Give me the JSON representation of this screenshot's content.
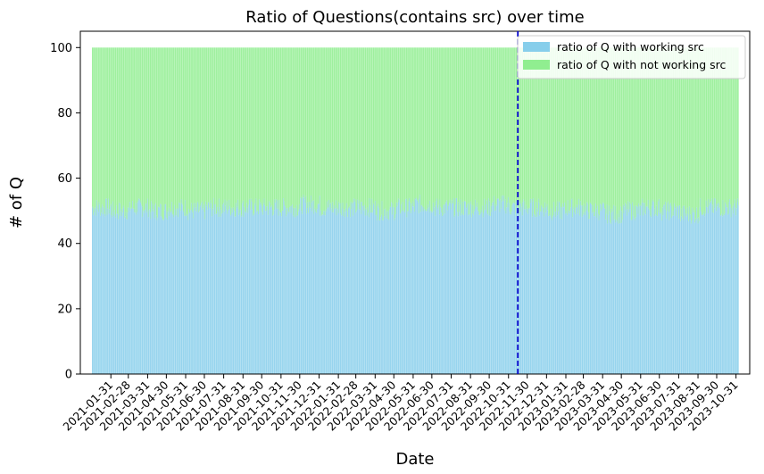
{
  "chart_data": {
    "type": "bar",
    "stacked": true,
    "title": "Ratio of Questions(contains src) over time",
    "xlabel": "Date",
    "ylabel": "# of Q",
    "ylim": [
      0,
      105
    ],
    "yticks": [
      0,
      20,
      40,
      60,
      80,
      100
    ],
    "x_start": "2021-01-01",
    "x_end": "2023-11-04",
    "xticks": [
      "2021-01-31",
      "2021-02-28",
      "2021-03-31",
      "2021-04-30",
      "2021-05-31",
      "2021-06-30",
      "2021-07-31",
      "2021-08-31",
      "2021-09-30",
      "2021-10-31",
      "2021-11-30",
      "2021-12-31",
      "2022-01-31",
      "2022-02-28",
      "2022-03-31",
      "2022-04-30",
      "2022-05-31",
      "2022-06-30",
      "2022-07-31",
      "2022-08-31",
      "2022-09-30",
      "2022-10-31",
      "2022-11-30",
      "2022-12-31",
      "2023-01-31",
      "2023-02-28",
      "2023-03-31",
      "2023-04-30",
      "2023-05-31",
      "2023-06-30",
      "2023-07-31",
      "2023-08-31",
      "2023-09-30",
      "2023-10-31"
    ],
    "vline": {
      "x": "2022-11-15",
      "color": "#0000cc",
      "style": "dashed"
    },
    "legend_position": "top-right",
    "series": [
      {
        "name": "ratio of Q with working src",
        "color": "#87ceeb",
        "monthly_avg": [
          51,
          50,
          51,
          50,
          51,
          50,
          51,
          51,
          51,
          51,
          51,
          52,
          51,
          51,
          51,
          50,
          51,
          52,
          51,
          51,
          51,
          52,
          51,
          51,
          50,
          51,
          50,
          49,
          50,
          51,
          50,
          49,
          51,
          51
        ],
        "total": 100
      },
      {
        "name": "ratio of Q with not working src",
        "color": "#90ee90",
        "total": 100
      }
    ]
  }
}
